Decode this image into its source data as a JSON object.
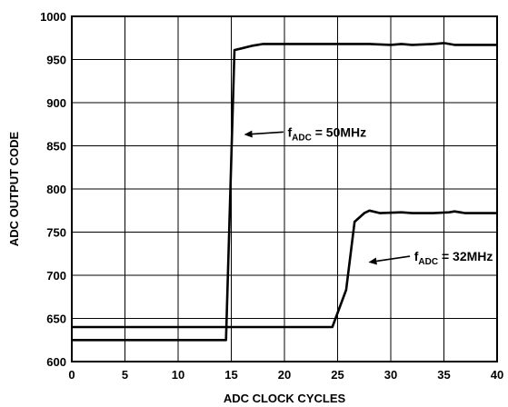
{
  "chart_data": {
    "type": "line",
    "xlabel": "ADC CLOCK CYCLES",
    "ylabel": "ADC OUTPUT CODE",
    "xlim": [
      0,
      40
    ],
    "ylim": [
      600,
      1000
    ],
    "xticks": [
      0,
      5,
      10,
      15,
      20,
      25,
      30,
      35,
      40
    ],
    "yticks": [
      600,
      650,
      700,
      750,
      800,
      850,
      900,
      950,
      1000
    ],
    "grid": true,
    "series": [
      {
        "name": "fADC = 50MHz",
        "label_main": "f",
        "label_sub": "ADC",
        "label_rest": " = 50MHz",
        "points": [
          [
            0,
            625
          ],
          [
            14.5,
            625
          ],
          [
            15.3,
            961
          ],
          [
            16,
            963
          ],
          [
            17,
            966
          ],
          [
            18,
            968
          ],
          [
            20,
            968
          ],
          [
            25,
            968
          ],
          [
            28,
            968
          ],
          [
            30,
            967
          ],
          [
            31,
            968
          ],
          [
            32,
            967
          ],
          [
            34,
            968
          ],
          [
            35,
            969
          ],
          [
            36,
            967
          ],
          [
            40,
            967
          ]
        ]
      },
      {
        "name": "fADC = 32MHz",
        "label_main": "f",
        "label_sub": "ADC",
        "label_rest": " = 32MHz",
        "points": [
          [
            0,
            640
          ],
          [
            24.5,
            640
          ],
          [
            25.8,
            683
          ],
          [
            26.6,
            762
          ],
          [
            27.5,
            772
          ],
          [
            28,
            775
          ],
          [
            29,
            772
          ],
          [
            31,
            773
          ],
          [
            32,
            772
          ],
          [
            34,
            772
          ],
          [
            35.5,
            773
          ],
          [
            36,
            774
          ],
          [
            37,
            772
          ],
          [
            40,
            772
          ]
        ]
      }
    ],
    "annotations": [
      {
        "series": 0,
        "text_at": [
          20.3,
          866
        ],
        "arrow_from": [
          19.9,
          866
        ],
        "arrow_to": [
          16.2,
          863
        ]
      },
      {
        "series": 1,
        "text_at": [
          32.2,
          722
        ],
        "arrow_from": [
          31.8,
          722
        ],
        "arrow_to": [
          27.9,
          715
        ]
      }
    ]
  }
}
